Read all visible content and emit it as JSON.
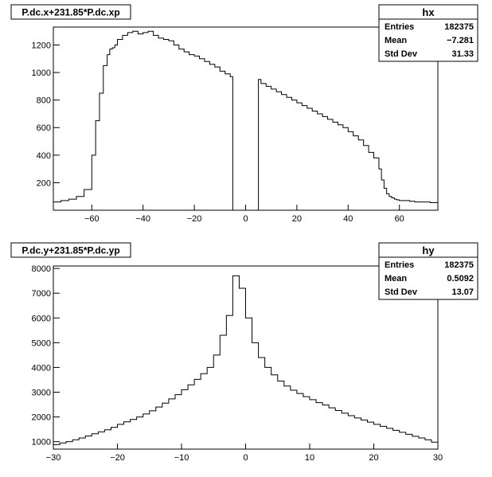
{
  "chart_data": [
    {
      "type": "histogram",
      "title": "P.dc.x+231.85*P.dc.xp",
      "stats": {
        "name": "hx",
        "rows": [
          {
            "label": "Entries",
            "value": "182375"
          },
          {
            "label": "Mean",
            "value": "−7.281"
          },
          {
            "label": "Std Dev",
            "value": "31.33"
          }
        ]
      },
      "xlim": [
        -75,
        75
      ],
      "ylim": [
        0,
        1330
      ],
      "xticks": [
        -60,
        -40,
        -20,
        0,
        20,
        40,
        60
      ],
      "yticks": [
        200,
        400,
        600,
        800,
        1000,
        1200
      ],
      "bins": {
        "edges": [
          -75,
          -72,
          -69,
          -66,
          -63,
          -60,
          -58.5,
          -57,
          -55.5,
          -54,
          -53,
          -52,
          -51,
          -50,
          -48,
          -46,
          -44,
          -42,
          -40,
          -38,
          -36,
          -34,
          -32,
          -30,
          -28,
          -26,
          -24,
          -22,
          -20,
          -18,
          -16,
          -14,
          -12,
          -10,
          -8,
          -6,
          -5,
          5,
          6,
          8,
          10,
          12,
          14,
          16,
          18,
          20,
          22,
          24,
          26,
          28,
          30,
          32,
          34,
          36,
          38,
          40,
          42,
          44,
          46,
          48,
          50,
          52,
          53,
          54,
          55,
          56,
          57,
          58,
          59,
          60,
          62,
          64,
          66,
          68,
          70,
          72,
          75
        ],
        "values": [
          60,
          70,
          80,
          100,
          150,
          400,
          650,
          850,
          1050,
          1130,
          1170,
          1180,
          1200,
          1240,
          1270,
          1290,
          1300,
          1280,
          1290,
          1300,
          1270,
          1250,
          1240,
          1230,
          1200,
          1170,
          1150,
          1130,
          1120,
          1100,
          1080,
          1060,
          1040,
          1010,
          990,
          970,
          0,
          950,
          920,
          900,
          880,
          860,
          840,
          820,
          800,
          780,
          760,
          740,
          720,
          700,
          680,
          660,
          640,
          620,
          600,
          570,
          540,
          510,
          470,
          420,
          380,
          300,
          220,
          160,
          120,
          100,
          90,
          80,
          75,
          70,
          70,
          65,
          60,
          60,
          60,
          55
        ]
      }
    },
    {
      "type": "histogram",
      "title": "P.dc.y+231.85*P.dc.yp",
      "stats": {
        "name": "hy",
        "rows": [
          {
            "label": "Entries",
            "value": "182375"
          },
          {
            "label": "Mean",
            "value": "0.5092"
          },
          {
            "label": "Std Dev",
            "value": "13.07"
          }
        ]
      },
      "xlim": [
        -30,
        30
      ],
      "ylim": [
        700,
        8100
      ],
      "xticks": [
        -30,
        -20,
        -10,
        0,
        10,
        20,
        30
      ],
      "yticks": [
        1000,
        2000,
        3000,
        4000,
        5000,
        6000,
        7000,
        8000
      ],
      "bins": {
        "edges": [
          -30,
          -29,
          -28,
          -27,
          -26,
          -25,
          -24,
          -23,
          -22,
          -21,
          -20,
          -19,
          -18,
          -17,
          -16,
          -15,
          -14,
          -13,
          -12,
          -11,
          -10,
          -9,
          -8,
          -7,
          -6,
          -5,
          -4,
          -3,
          -2,
          -1,
          0,
          1,
          2,
          3,
          4,
          5,
          6,
          7,
          8,
          9,
          10,
          11,
          12,
          13,
          14,
          15,
          16,
          17,
          18,
          19,
          20,
          21,
          22,
          23,
          24,
          25,
          26,
          27,
          28,
          29,
          30
        ],
        "values": [
          880,
          950,
          1000,
          1080,
          1150,
          1230,
          1320,
          1400,
          1480,
          1580,
          1700,
          1800,
          1900,
          2000,
          2120,
          2250,
          2400,
          2560,
          2730,
          2900,
          3100,
          3300,
          3520,
          3750,
          4000,
          4500,
          5300,
          6100,
          7700,
          7200,
          6000,
          5000,
          4400,
          4000,
          3700,
          3450,
          3250,
          3080,
          2950,
          2820,
          2700,
          2580,
          2480,
          2370,
          2260,
          2150,
          2050,
          1960,
          1880,
          1790,
          1700,
          1620,
          1540,
          1460,
          1380,
          1300,
          1220,
          1150,
          1080,
          980
        ]
      }
    }
  ]
}
